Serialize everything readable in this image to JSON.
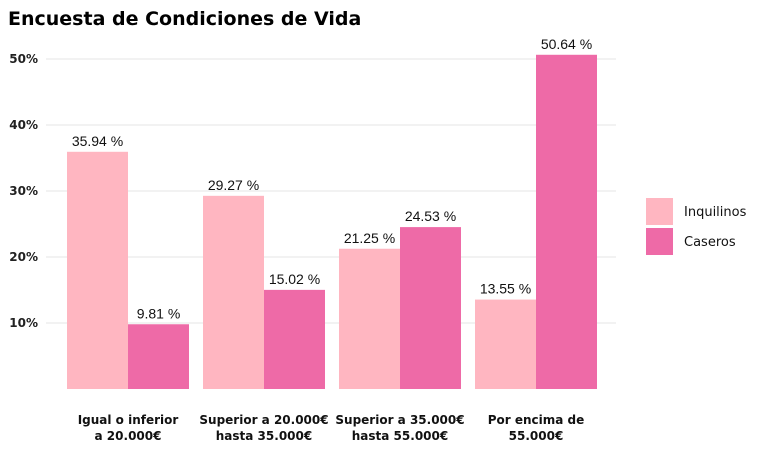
{
  "chart_data": {
    "type": "bar",
    "title": "Encuesta de Condiciones de Vida",
    "xlabel": "",
    "ylabel": "",
    "categories": [
      [
        "Igual o inferior",
        "a 20.000€"
      ],
      [
        "Superior a 20.000€",
        "hasta 35.000€"
      ],
      [
        "Superior a 35.000€",
        "hasta 55.000€"
      ],
      [
        "Por encima de",
        "55.000€"
      ]
    ],
    "series": [
      {
        "name": "Inquilinos",
        "color": "#FFB6C1",
        "values": [
          35.94,
          29.27,
          21.25,
          13.55
        ],
        "labels": [
          "35.94 %",
          "29.27 %",
          "21.25 %",
          "13.55 %"
        ]
      },
      {
        "name": "Caseros",
        "color": "#EE6AA7",
        "values": [
          9.81,
          15.02,
          24.53,
          50.64
        ],
        "labels": [
          "9.81 %",
          "15.02 %",
          "24.53 %",
          "50.64 %"
        ]
      }
    ],
    "ylim": [
      0,
      53
    ],
    "yticks": [
      10,
      20,
      30,
      40,
      50
    ],
    "ytick_labels": [
      "10%",
      "20%",
      "30%",
      "40%",
      "50%"
    ],
    "grid": true,
    "legend_position": "right"
  }
}
